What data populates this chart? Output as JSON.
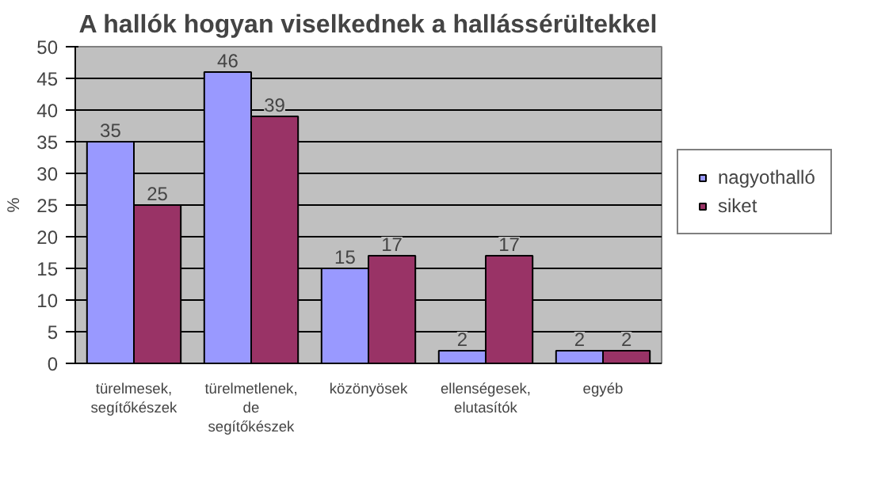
{
  "chart_data": {
    "type": "bar",
    "title": "A hallók hogyan viselkednek a hallássérültekkel",
    "ylabel": "%",
    "categories": [
      "türelmesek,\nsegítőkészek",
      "türelmetlenek,\nde\nsegítőkészek",
      "közönyösek",
      "ellenségesek,\nelutasítók",
      "egyéb"
    ],
    "series": [
      {
        "name": "nagyothalló",
        "color": "#9999ff",
        "values": [
          35,
          46,
          15,
          2,
          2
        ]
      },
      {
        "name": "siket",
        "color": "#993366",
        "values": [
          25,
          39,
          17,
          17,
          2
        ]
      }
    ],
    "ylim": [
      0,
      50
    ],
    "yticks": [
      0,
      5,
      10,
      15,
      20,
      25,
      30,
      35,
      40,
      45,
      50
    ],
    "grid": "y",
    "legend": "right",
    "data_labels": true
  }
}
